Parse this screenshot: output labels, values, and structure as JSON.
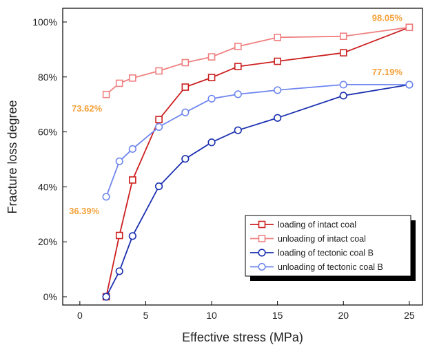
{
  "chart_data": {
    "type": "line",
    "xlabel": "Effective stress (MPa)",
    "ylabel": "Fracture loss degree",
    "xlim": [
      -1.3,
      26
    ],
    "ylim": [
      -3,
      105
    ],
    "x_ticks": [
      0,
      5,
      10,
      15,
      20,
      25
    ],
    "y_ticks": [
      0,
      20,
      40,
      60,
      80,
      100
    ],
    "y_tick_labels": [
      "0%",
      "20%",
      "40%",
      "60%",
      "80%",
      "100%"
    ],
    "grid": false,
    "legend_position": "bottom-right",
    "series": [
      {
        "name": "loading of intact coal",
        "color": "#cc1f1f",
        "marker": "square",
        "x": [
          2,
          3,
          4,
          6,
          8,
          10,
          12,
          15,
          20,
          25
        ],
        "y": [
          0,
          22.3,
          42.5,
          64.5,
          76.3,
          79.8,
          83.8,
          85.7,
          88.8,
          98.05
        ]
      },
      {
        "name": "unloading of intact coal",
        "color": "#f08080",
        "marker": "square",
        "x": [
          2,
          3,
          4,
          6,
          8,
          10,
          12,
          15,
          20,
          25
        ],
        "y": [
          73.62,
          77.7,
          79.6,
          82.2,
          85.2,
          87.3,
          91.1,
          94.4,
          94.8,
          98.05
        ]
      },
      {
        "name": "loading of tectonic coal B",
        "color": "#1a2fb0",
        "marker": "circle",
        "x": [
          2,
          3,
          4,
          6,
          8,
          10,
          12,
          15,
          20,
          25
        ],
        "y": [
          0,
          9.3,
          22.1,
          40.2,
          50.2,
          56.2,
          60.6,
          65.1,
          73.2,
          77.19
        ]
      },
      {
        "name": "unloading of tectonic coal B",
        "color": "#6f86ef",
        "marker": "circle",
        "x": [
          2,
          3,
          4,
          6,
          8,
          10,
          12,
          15,
          20,
          25
        ],
        "y": [
          36.39,
          49.3,
          53.8,
          61.8,
          67.1,
          72.1,
          73.7,
          75.2,
          77.2,
          77.19
        ]
      }
    ],
    "annotations": [
      {
        "text": "98.05%",
        "x": 25,
        "y": 98.05,
        "color": "#f5a13a"
      },
      {
        "text": "77.19%",
        "x": 25,
        "y": 77.19,
        "color": "#f5a13a"
      },
      {
        "text": "73.62%",
        "x": 2,
        "y": 73.62,
        "color": "#f5a13a"
      },
      {
        "text": "36.39%",
        "x": 2,
        "y": 36.39,
        "color": "#f5a13a"
      }
    ]
  }
}
